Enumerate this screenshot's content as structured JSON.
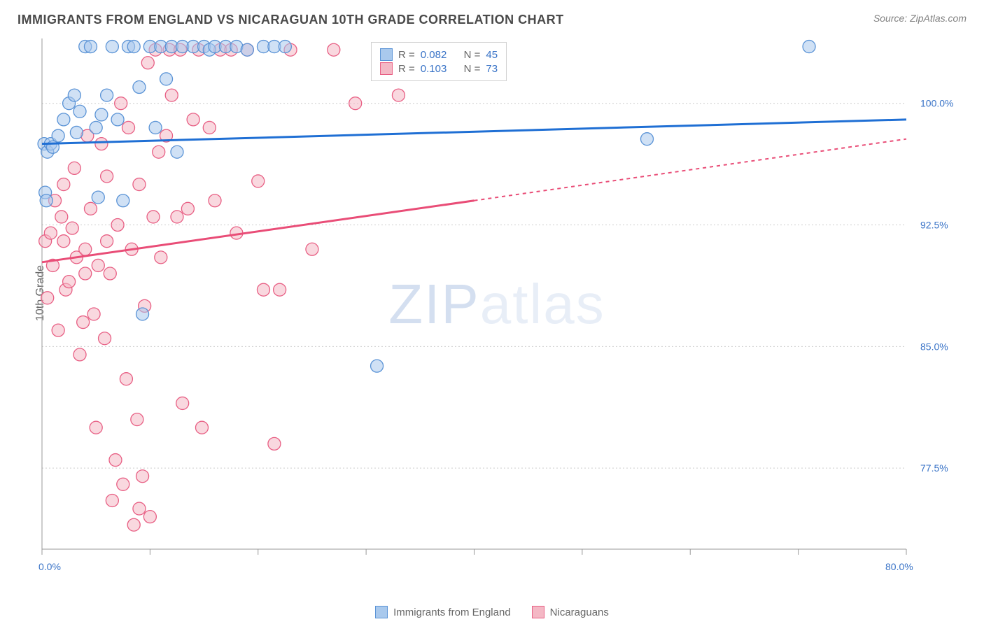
{
  "title": "IMMIGRANTS FROM ENGLAND VS NICARAGUAN 10TH GRADE CORRELATION CHART",
  "source": "Source: ZipAtlas.com",
  "y_axis_label": "10th Grade",
  "watermark_a": "ZIP",
  "watermark_b": "atlas",
  "chart": {
    "type": "scatter",
    "xlim": [
      0,
      80
    ],
    "ylim": [
      72.5,
      104.0
    ],
    "y_ticks": [
      77.5,
      85.0,
      92.5,
      100.0
    ],
    "y_tick_labels": [
      "77.5%",
      "85.0%",
      "92.5%",
      "100.0%"
    ],
    "y_label_color": "#3973c7",
    "x_ticks": [
      0,
      10,
      20,
      30,
      40,
      50,
      60,
      70,
      80
    ],
    "x_tick_labels": [
      "0.0%",
      "",
      "",
      "",
      "",
      "",
      "",
      "",
      "80.0%"
    ],
    "background_color": "#ffffff",
    "grid_color": "#cccccc",
    "axis_color": "#999999",
    "series": [
      {
        "name": "Immigrants from England",
        "key": "england",
        "color_fill": "#a9c9ed",
        "color_stroke": "#5a93d6",
        "marker_radius": 9,
        "opacity": 0.55,
        "R": "0.082",
        "N": "45",
        "trend_solid": {
          "x1": 0,
          "y1": 97.5,
          "x2": 80,
          "y2": 99.0
        },
        "trend_dash": null,
        "line_color": "#1f6fd4",
        "points": [
          [
            0.2,
            97.5
          ],
          [
            0.5,
            97.0
          ],
          [
            0.8,
            97.5
          ],
          [
            1.0,
            97.3
          ],
          [
            1.5,
            98.0
          ],
          [
            2.0,
            99.0
          ],
          [
            2.5,
            100.0
          ],
          [
            3.0,
            100.5
          ],
          [
            3.2,
            98.2
          ],
          [
            3.5,
            99.5
          ],
          [
            4.0,
            103.5
          ],
          [
            4.5,
            103.5
          ],
          [
            5.0,
            98.5
          ],
          [
            5.2,
            94.2
          ],
          [
            5.5,
            99.3
          ],
          [
            6.0,
            100.5
          ],
          [
            6.5,
            103.5
          ],
          [
            7.0,
            99.0
          ],
          [
            7.5,
            94.0
          ],
          [
            8.0,
            103.5
          ],
          [
            8.5,
            103.5
          ],
          [
            9.0,
            101.0
          ],
          [
            9.3,
            87.0
          ],
          [
            10.0,
            103.5
          ],
          [
            10.5,
            98.5
          ],
          [
            11.0,
            103.5
          ],
          [
            11.5,
            101.5
          ],
          [
            12.0,
            103.5
          ],
          [
            12.5,
            97.0
          ],
          [
            13.0,
            103.5
          ],
          [
            14.0,
            103.5
          ],
          [
            15.0,
            103.5
          ],
          [
            15.5,
            103.3
          ],
          [
            16.0,
            103.5
          ],
          [
            17.0,
            103.5
          ],
          [
            18.0,
            103.5
          ],
          [
            19.0,
            103.3
          ],
          [
            20.5,
            103.5
          ],
          [
            21.5,
            103.5
          ],
          [
            22.5,
            103.5
          ],
          [
            31.0,
            83.8
          ],
          [
            56.0,
            97.8
          ],
          [
            71.0,
            103.5
          ],
          [
            0.3,
            94.5
          ],
          [
            0.4,
            94.0
          ]
        ]
      },
      {
        "name": "Nicaraguans",
        "key": "nicaraguans",
        "color_fill": "#f4b8c5",
        "color_stroke": "#e85f84",
        "marker_radius": 9,
        "opacity": 0.55,
        "R": "0.103",
        "N": "73",
        "trend_solid": {
          "x1": 0,
          "y1": 90.2,
          "x2": 40,
          "y2": 94.0
        },
        "trend_dash": {
          "x1": 40,
          "y1": 94.0,
          "x2": 80,
          "y2": 97.8
        },
        "line_color": "#e94d77",
        "points": [
          [
            0.3,
            91.5
          ],
          [
            0.5,
            88.0
          ],
          [
            0.8,
            92.0
          ],
          [
            1.0,
            90.0
          ],
          [
            1.2,
            94.0
          ],
          [
            1.5,
            86.0
          ],
          [
            1.8,
            93.0
          ],
          [
            2.0,
            91.5
          ],
          [
            2.2,
            88.5
          ],
          [
            2.5,
            89.0
          ],
          [
            2.8,
            92.3
          ],
          [
            3.0,
            96.0
          ],
          [
            3.2,
            90.5
          ],
          [
            3.5,
            84.5
          ],
          [
            3.8,
            86.5
          ],
          [
            4.0,
            91.0
          ],
          [
            4.2,
            98.0
          ],
          [
            4.5,
            93.5
          ],
          [
            4.8,
            87.0
          ],
          [
            5.0,
            80.0
          ],
          [
            5.2,
            90.0
          ],
          [
            5.5,
            97.5
          ],
          [
            5.8,
            85.5
          ],
          [
            6.0,
            95.5
          ],
          [
            6.3,
            89.5
          ],
          [
            6.5,
            75.5
          ],
          [
            6.8,
            78.0
          ],
          [
            7.0,
            92.5
          ],
          [
            7.3,
            100.0
          ],
          [
            7.5,
            76.5
          ],
          [
            7.8,
            83.0
          ],
          [
            8.0,
            98.5
          ],
          [
            8.3,
            91.0
          ],
          [
            8.5,
            74.0
          ],
          [
            8.8,
            80.5
          ],
          [
            9.0,
            95.0
          ],
          [
            9.3,
            77.0
          ],
          [
            9.5,
            87.5
          ],
          [
            9.8,
            102.5
          ],
          [
            10.0,
            74.5
          ],
          [
            10.3,
            93.0
          ],
          [
            10.5,
            103.3
          ],
          [
            10.8,
            97.0
          ],
          [
            11.0,
            90.5
          ],
          [
            11.5,
            98.0
          ],
          [
            11.8,
            103.3
          ],
          [
            12.0,
            100.5
          ],
          [
            12.5,
            93.0
          ],
          [
            12.8,
            103.3
          ],
          [
            13.0,
            81.5
          ],
          [
            13.5,
            93.5
          ],
          [
            14.0,
            99.0
          ],
          [
            14.5,
            103.3
          ],
          [
            14.8,
            80.0
          ],
          [
            15.5,
            98.5
          ],
          [
            16.0,
            94.0
          ],
          [
            16.5,
            103.3
          ],
          [
            17.5,
            103.3
          ],
          [
            18.0,
            92.0
          ],
          [
            19.0,
            103.3
          ],
          [
            20.0,
            95.2
          ],
          [
            20.5,
            88.5
          ],
          [
            21.5,
            79.0
          ],
          [
            22.0,
            88.5
          ],
          [
            23.0,
            103.3
          ],
          [
            25.0,
            91.0
          ],
          [
            27.0,
            103.3
          ],
          [
            29.0,
            100.0
          ],
          [
            33.0,
            100.5
          ],
          [
            9.0,
            75.0
          ],
          [
            6.0,
            91.5
          ],
          [
            4.0,
            89.5
          ],
          [
            2.0,
            95.0
          ]
        ]
      }
    ]
  },
  "stats_box": {
    "r_label": "R =",
    "n_label": "N ="
  },
  "bottom_legend": [
    {
      "label": "Immigrants from England",
      "fill": "#a9c9ed",
      "stroke": "#5a93d6"
    },
    {
      "label": "Nicaraguans",
      "fill": "#f4b8c5",
      "stroke": "#e85f84"
    }
  ]
}
